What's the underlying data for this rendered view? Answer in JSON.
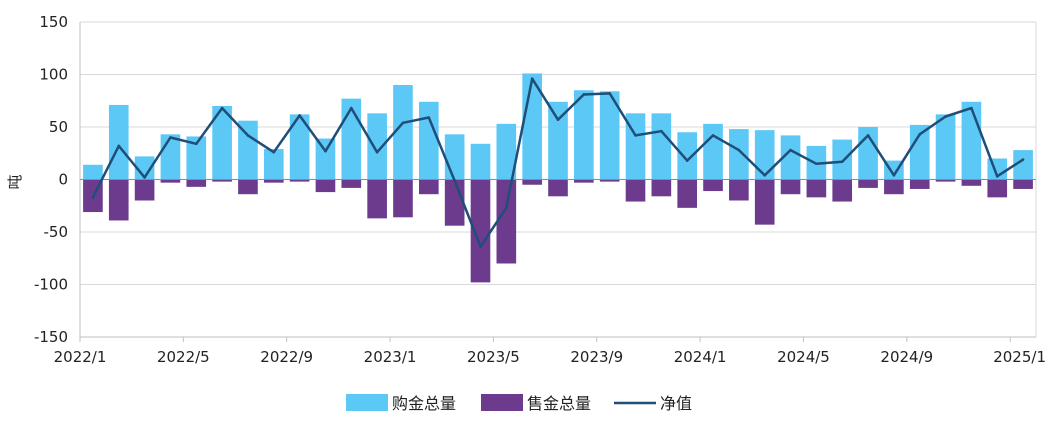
{
  "chart_data": {
    "type": "bar",
    "ylabel": "吨",
    "ylim": [
      -150,
      150
    ],
    "yticks": [
      "150",
      "100",
      "50",
      "0",
      "-50",
      "-100",
      "-150"
    ],
    "ytick_values": [
      150,
      100,
      50,
      0,
      -50,
      -100,
      -150
    ],
    "xtick_labels": [
      "2022/1",
      "2022/5",
      "2022/9",
      "2023/1",
      "2023/5",
      "2023/9",
      "2024/1",
      "2024/5",
      "2024/9",
      "2025/1"
    ],
    "xtick_indices": [
      0,
      4,
      8,
      12,
      16,
      20,
      24,
      28,
      32,
      36
    ],
    "categories": [
      "2022/1",
      "2022/2",
      "2022/3",
      "2022/4",
      "2022/5",
      "2022/6",
      "2022/7",
      "2022/8",
      "2022/9",
      "2022/10",
      "2022/11",
      "2022/12",
      "2023/1",
      "2023/2",
      "2023/3",
      "2023/4",
      "2023/5",
      "2023/6",
      "2023/7",
      "2023/8",
      "2023/9",
      "2023/10",
      "2023/11",
      "2023/12",
      "2024/1",
      "2024/2",
      "2024/3",
      "2024/4",
      "2024/5",
      "2024/6",
      "2024/7",
      "2024/8",
      "2024/9",
      "2024/10",
      "2024/11",
      "2024/12",
      "2025/1"
    ],
    "series": [
      {
        "name": "购金总量",
        "kind": "bar",
        "color": "#5bc8f5",
        "values": [
          14,
          71,
          22,
          43,
          41,
          70,
          56,
          29,
          62,
          39,
          77,
          63,
          90,
          74,
          43,
          34,
          53,
          101,
          74,
          85,
          84,
          63,
          63,
          45,
          53,
          48,
          47,
          42,
          32,
          38,
          50,
          18,
          52,
          62,
          74,
          20,
          28
        ]
      },
      {
        "name": "售金总量",
        "kind": "bar",
        "color": "#6c3b8e",
        "values": [
          -31,
          -39,
          -20,
          -3,
          -7,
          -2,
          -14,
          -3,
          -2,
          -12,
          -8,
          -37,
          -36,
          -14,
          -44,
          -98,
          -80,
          -5,
          -16,
          -3,
          -2,
          -21,
          -16,
          -27,
          -11,
          -20,
          -43,
          -14,
          -17,
          -21,
          -8,
          -14,
          -9,
          -2,
          -6,
          -17,
          -9
        ]
      },
      {
        "name": "净值",
        "kind": "line",
        "color": "#1f4e79",
        "values": [
          -17,
          32,
          2,
          40,
          34,
          68,
          42,
          26,
          61,
          27,
          68,
          26,
          54,
          59,
          -1,
          -64,
          -27,
          96,
          57,
          81,
          82,
          42,
          46,
          18,
          42,
          28,
          4,
          28,
          15,
          17,
          42,
          4,
          43,
          60,
          68,
          3,
          19
        ]
      }
    ],
    "legend_position": "bottom",
    "grid": false
  }
}
